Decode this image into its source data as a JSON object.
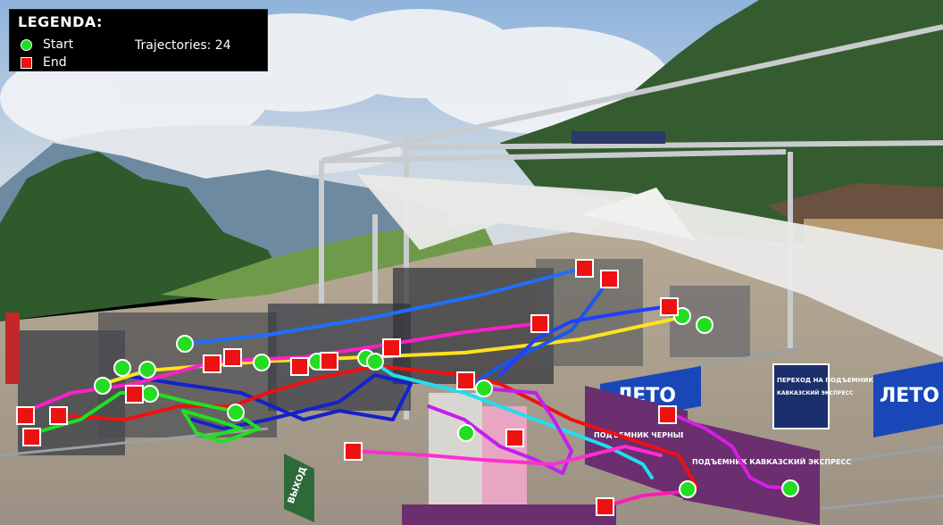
{
  "legend": {
    "title": "LEGENDA:",
    "start_label": "Start",
    "end_label": "End",
    "trajectories_text": "Trajectories: 24",
    "trajectories_count": 24
  },
  "signs": {
    "banner_left": "ЛЕТО",
    "banner_right": "ЛЕТО",
    "exit_sign": "ВЫХОД",
    "info_sign_title": "ПЕРЕХОД НА ПОДЪЕМНИК",
    "info_sign_sub": "КАВКАЗСКИЙ ЭКСПРЕСС",
    "purple_banner_1": "ПОДЪЕМНИК КАВКАЗСКИЙ ЭКСПРЕСС",
    "purple_banner_2": "ПОДЪЕМНИК ЧЕРНЫЕ СКАЛА"
  },
  "colors": {
    "start_marker": "#22dd22",
    "end_marker": "#ee1111",
    "legend_bg": "#000000",
    "canopy": "#e8e8e6",
    "sky": "#a9c6e6",
    "forest": "#3f6a3a",
    "purple_banner": "#6b2e6f",
    "blue_banner": "#1a47b8"
  }
}
